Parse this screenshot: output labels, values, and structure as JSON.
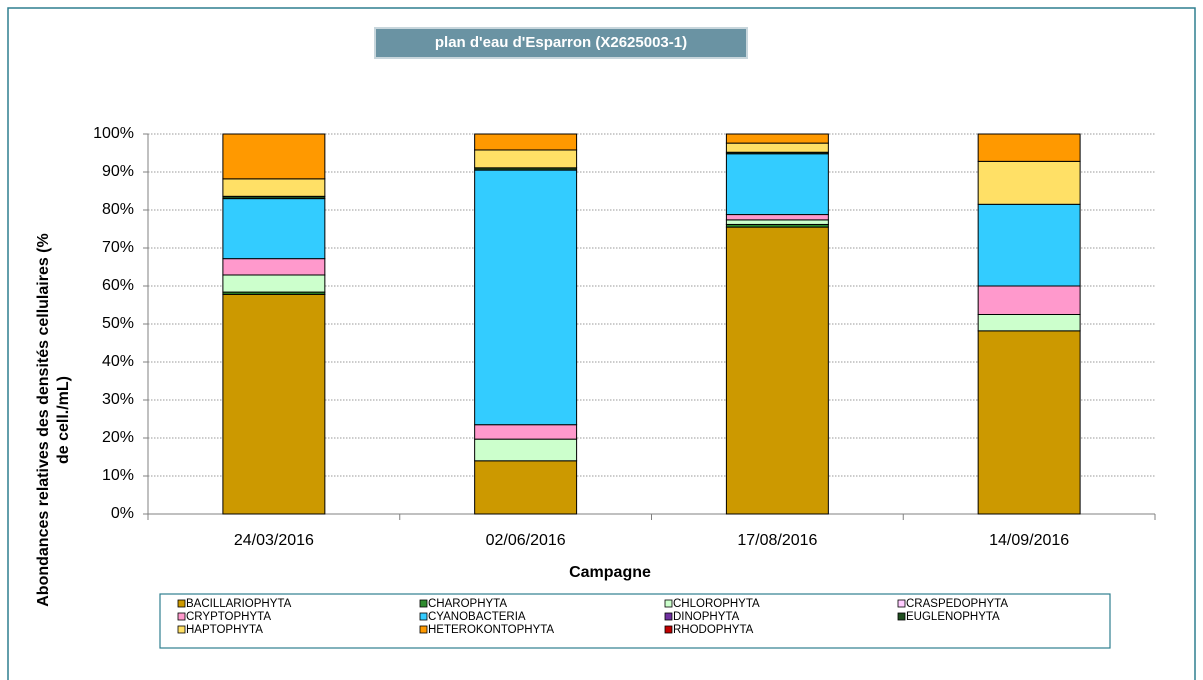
{
  "chart_data": {
    "type": "stacked-bar",
    "title": "plan d'eau d'Esparron (X2625003-1)",
    "xlabel": "Campagne",
    "ylabel": [
      "Abondances relatives des densités cellulaires (%",
      "de cell./mL)"
    ],
    "categories": [
      "24/03/2016",
      "02/06/2016",
      "17/08/2016",
      "14/09/2016"
    ],
    "series": [
      {
        "name": "BACILLARIOPHYTA",
        "color": "#cc9900",
        "values": [
          57.8,
          14,
          75.5,
          48.2
        ]
      },
      {
        "name": "CHAROPHYTA",
        "color": "#2e8b2e",
        "values": [
          0.6,
          0,
          0.7,
          0
        ]
      },
      {
        "name": "CHLOROPHYTA",
        "color": "#ccffcc",
        "values": [
          4.5,
          5.7,
          1.2,
          4.3
        ]
      },
      {
        "name": "CRASPEDOPHYTA",
        "color": "#ffccff",
        "values": [
          0,
          0,
          0,
          0
        ]
      },
      {
        "name": "CRYPTOPHYTA",
        "color": "#ff99cc",
        "values": [
          4.3,
          3.8,
          1.4,
          7.5
        ]
      },
      {
        "name": "CYANOBACTERIA",
        "color": "#33ccff",
        "values": [
          15.8,
          67,
          16,
          21.5
        ]
      },
      {
        "name": "DINOPHYTA",
        "color": "#7030a0",
        "values": [
          0,
          0,
          0,
          0
        ]
      },
      {
        "name": "EUGLENOPHYTA",
        "color": "#1f4e1f",
        "values": [
          0.6,
          0.6,
          0.4,
          0
        ]
      },
      {
        "name": "HAPTOPHYTA",
        "color": "#ffe066",
        "values": [
          4.6,
          4.7,
          2.4,
          11.3
        ]
      },
      {
        "name": "HETEROKONTOPHYTA",
        "color": "#ff9900",
        "values": [
          11.8,
          4.2,
          2.4,
          7.2
        ]
      },
      {
        "name": "RHODOPHYTA",
        "color": "#c00000",
        "values": [
          0,
          0,
          0,
          0
        ]
      }
    ],
    "ylim": [
      0,
      100
    ],
    "yticks": [
      {
        "value": 0,
        "label": "0%"
      },
      {
        "value": 10,
        "label": "10%"
      },
      {
        "value": 20,
        "label": "20%"
      },
      {
        "value": 30,
        "label": "30%"
      },
      {
        "value": 40,
        "label": "40%"
      },
      {
        "value": 50,
        "label": "50%"
      },
      {
        "value": 60,
        "label": "60%"
      },
      {
        "value": 70,
        "label": "70%"
      },
      {
        "value": 80,
        "label": "80%"
      },
      {
        "value": 90,
        "label": "90%"
      },
      {
        "value": 100,
        "label": "100%"
      }
    ],
    "grid": true,
    "legend": "bottom"
  }
}
